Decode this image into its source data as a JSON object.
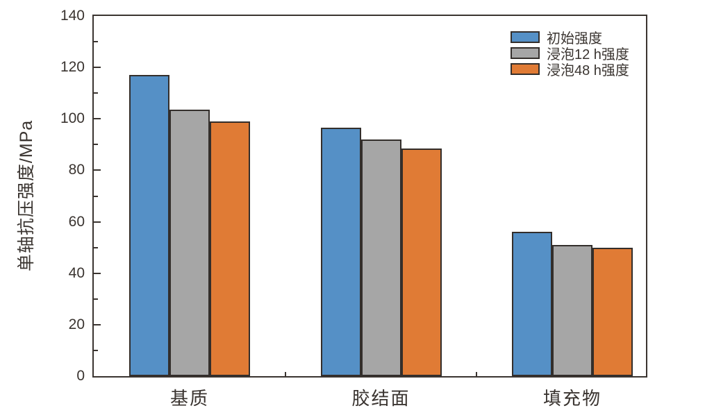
{
  "chart_data": {
    "type": "bar",
    "title": "",
    "categories": [
      "基质",
      "胶结面",
      "填充物"
    ],
    "series": [
      {
        "name": "初始强度",
        "color": "#5590C6",
        "values": [
          117,
          96.5,
          56
        ]
      },
      {
        "name": "浸泡12 h强度",
        "color": "#A6A6A6",
        "values": [
          103.5,
          92,
          51
        ]
      },
      {
        "name": "浸泡48 h强度",
        "color": "#E07B35",
        "values": [
          99,
          88.5,
          50
        ]
      }
    ],
    "xlabel": "",
    "ylabel": "单轴抗压强度/MPa",
    "ylim": [
      0,
      140
    ],
    "yticks": [
      0,
      20,
      40,
      60,
      80,
      100,
      120,
      140
    ],
    "ytick_minor_step": 10,
    "grid": false,
    "legend_position": "top-right-inside",
    "axis_color": "#3A3430",
    "bar_outline_color": "#332E2B",
    "background_color": "#FFFFFF"
  }
}
